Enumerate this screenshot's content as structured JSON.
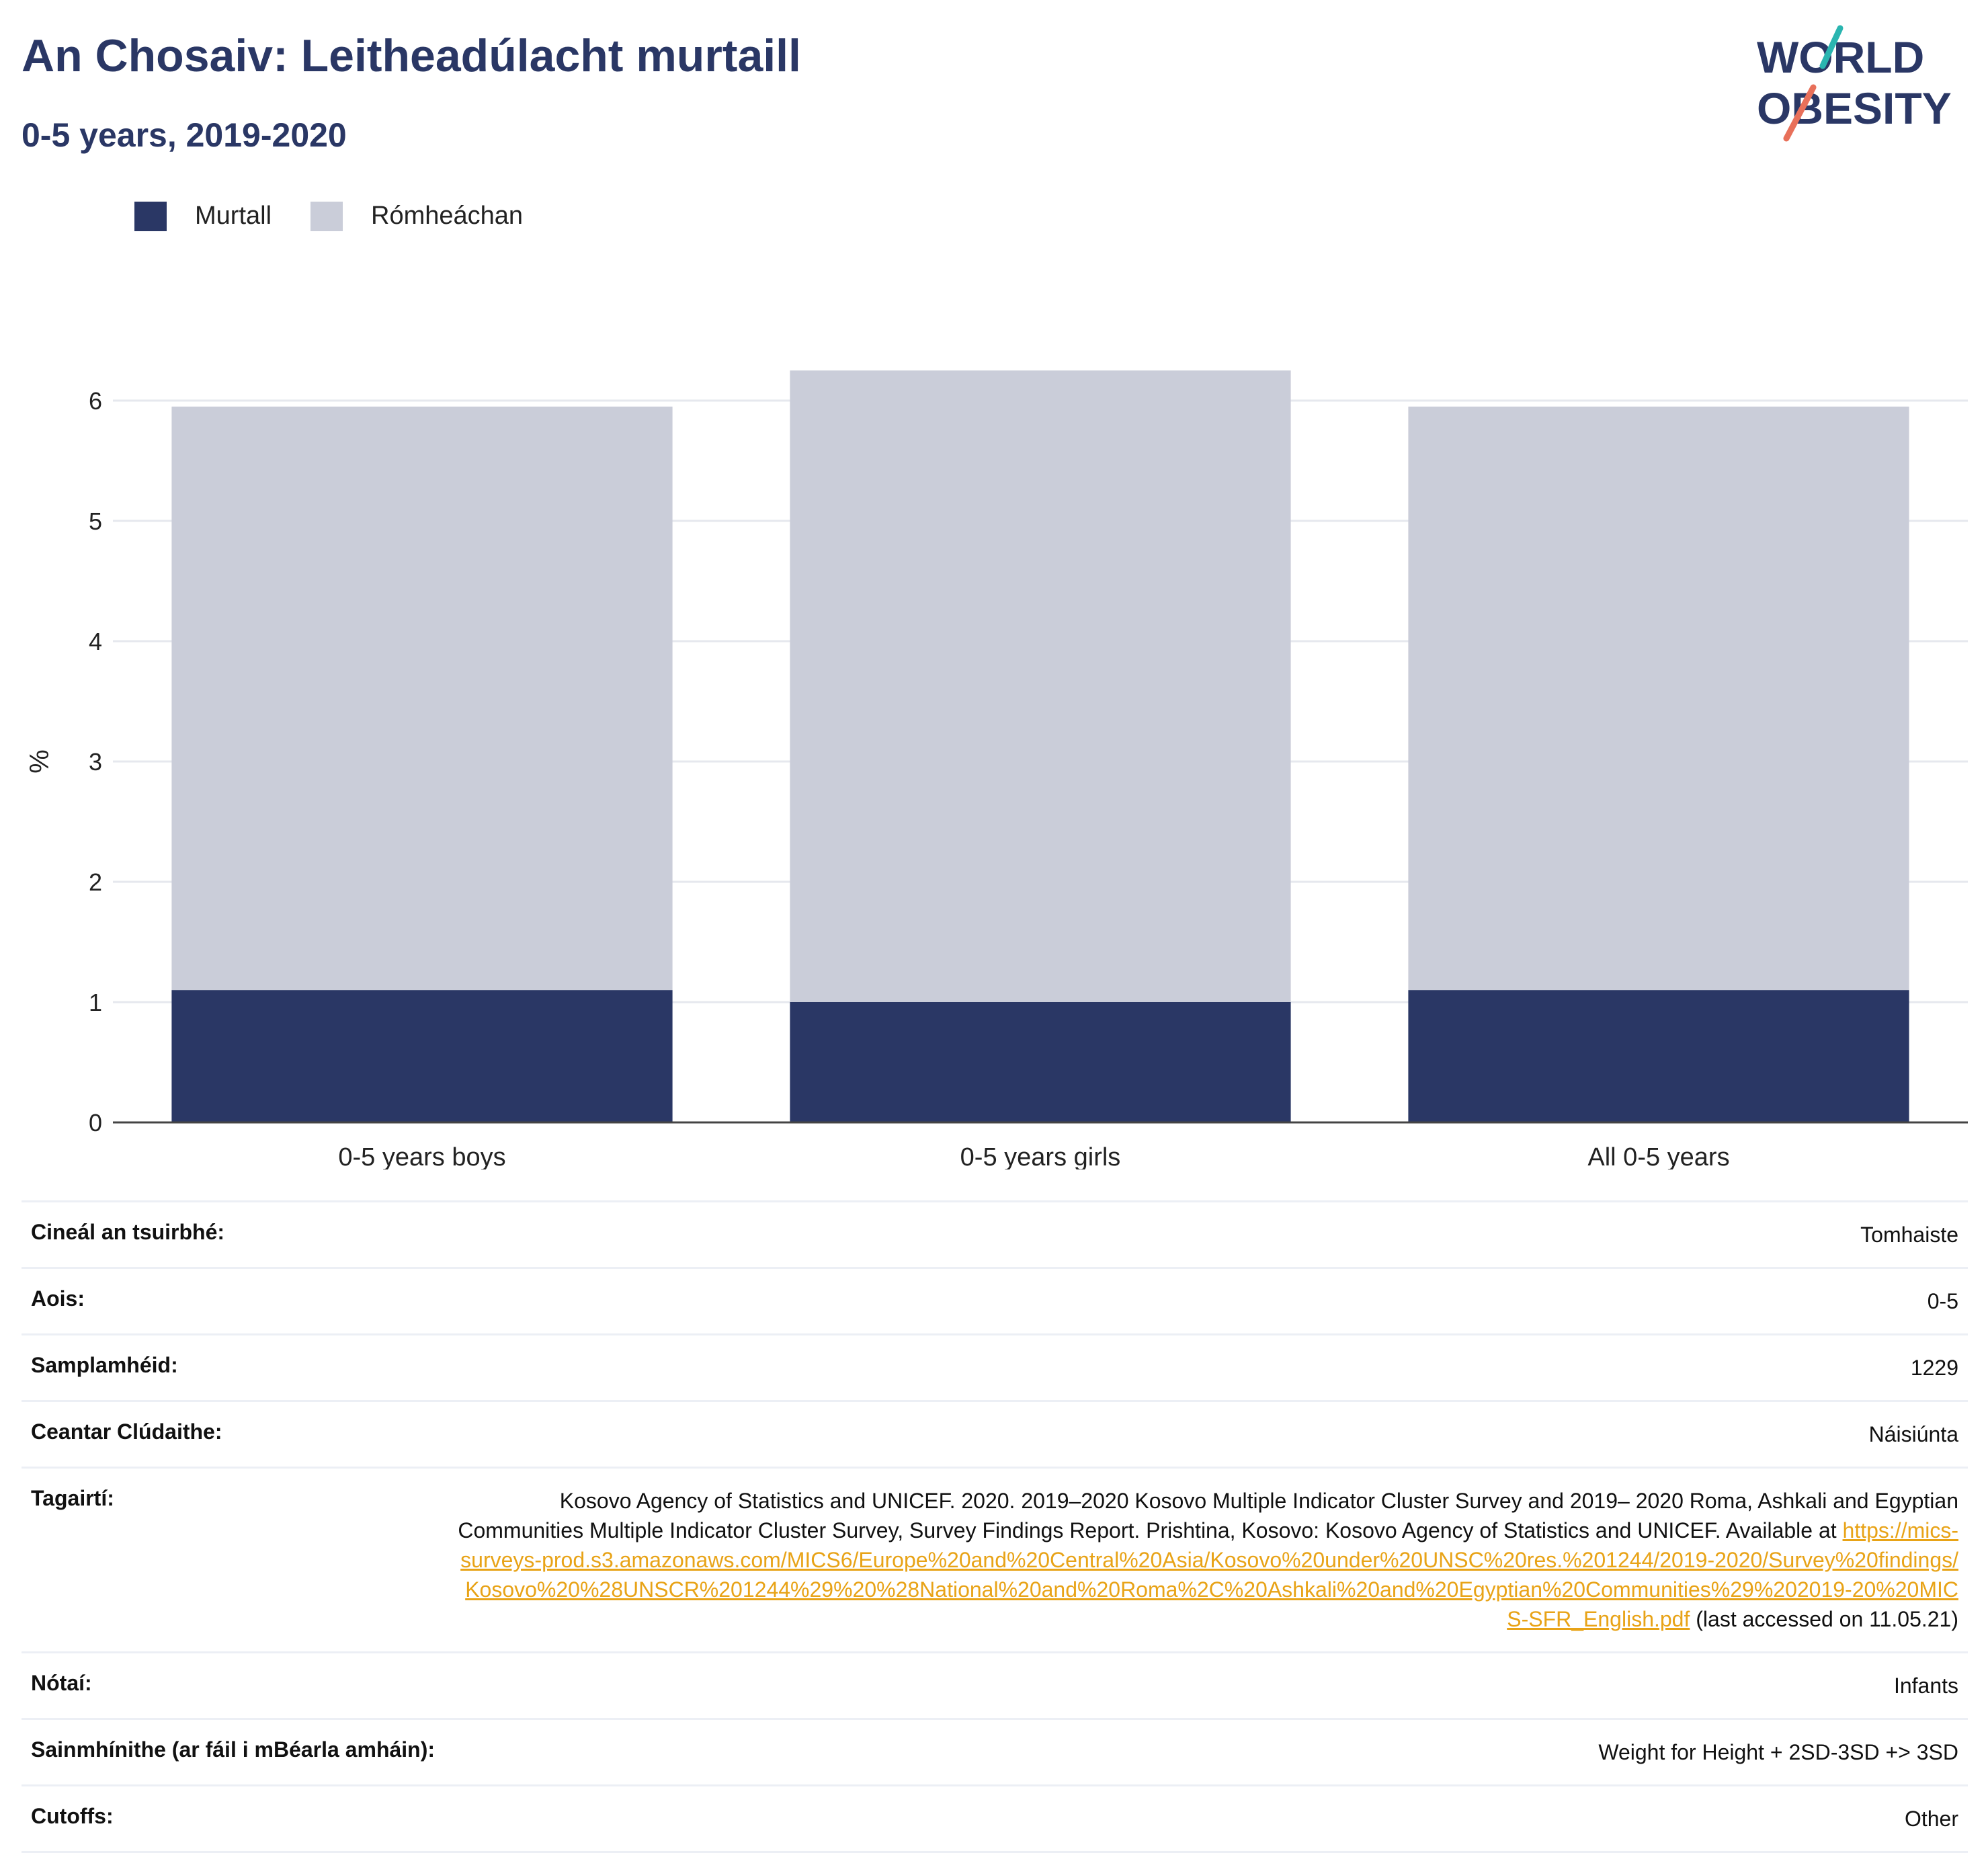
{
  "header": {
    "title": "An Chosaiv: Leitheadúlacht murtaill",
    "subtitle": "0-5 years, 2019-2020"
  },
  "logo": {
    "line1": "WORLD",
    "line2": "OBESITY"
  },
  "colors": {
    "obese": "#2a3765",
    "overweight": "#cacdd9",
    "title": "#2a3765",
    "link": "#e8a317",
    "logo_teal": "#2ab5b0",
    "logo_coral": "#e8705a"
  },
  "chart_data": {
    "type": "bar",
    "stacked": true,
    "categories": [
      "0-5 years boys",
      "0-5 years girls",
      "All 0-5 years"
    ],
    "series": [
      {
        "name": "Murtall",
        "values": [
          1.1,
          1.0,
          1.1
        ]
      },
      {
        "name": "Rómheáchan",
        "values": [
          4.85,
          5.25,
          4.85
        ]
      }
    ],
    "ylabel": "%",
    "ylim": [
      0,
      6.6
    ],
    "yticks": [
      0,
      1,
      2,
      3,
      4,
      5,
      6
    ],
    "grid": true,
    "legend": "top-left"
  },
  "info": {
    "rows": [
      {
        "label": "Cineál an tsuirbhé:",
        "value": "Tomhaiste"
      },
      {
        "label": "Aois:",
        "value": "0-5"
      },
      {
        "label": "Samplamhéid:",
        "value": "1229"
      },
      {
        "label": "Ceantar Clúdaithe:",
        "value": "Náisiúnta"
      }
    ],
    "reference": {
      "label": "Tagairtí:",
      "text": "Kosovo Agency of Statistics and UNICEF. 2020. 2019–2020 Kosovo Multiple Indicator Cluster Survey and 2019– 2020 Roma, Ashkali and Egyptian Communities Multiple Indicator Cluster Survey, Survey Findings Report. Prishtina, Kosovo: Kosovo Agency of Statistics and UNICEF. Available at ",
      "link": "https://mics-surveys-prod.s3.amazonaws.com/MICS6/Europe%20and%20Central%20Asia/Kosovo%20under%20UNSC%20res.%201244/2019-2020/Survey%20findings/Kosovo%20%28UNSCR%201244%29%20%28National%20and%20Roma%2C%20Ashkali%20and%20Egyptian%20Communities%29%202019-20%20MICS-SFR_English.pdf",
      "suffix": " (last accessed on 11.05.21)"
    },
    "rows2": [
      {
        "label": "Nótaí:",
        "value": "Infants"
      },
      {
        "label": "Sainmhínithe (ar fáil i mBéarla amháin):",
        "value": "Weight for Height + 2SD-3SD +> 3SD"
      },
      {
        "label": "Cutoffs:",
        "value": "Other"
      }
    ]
  }
}
